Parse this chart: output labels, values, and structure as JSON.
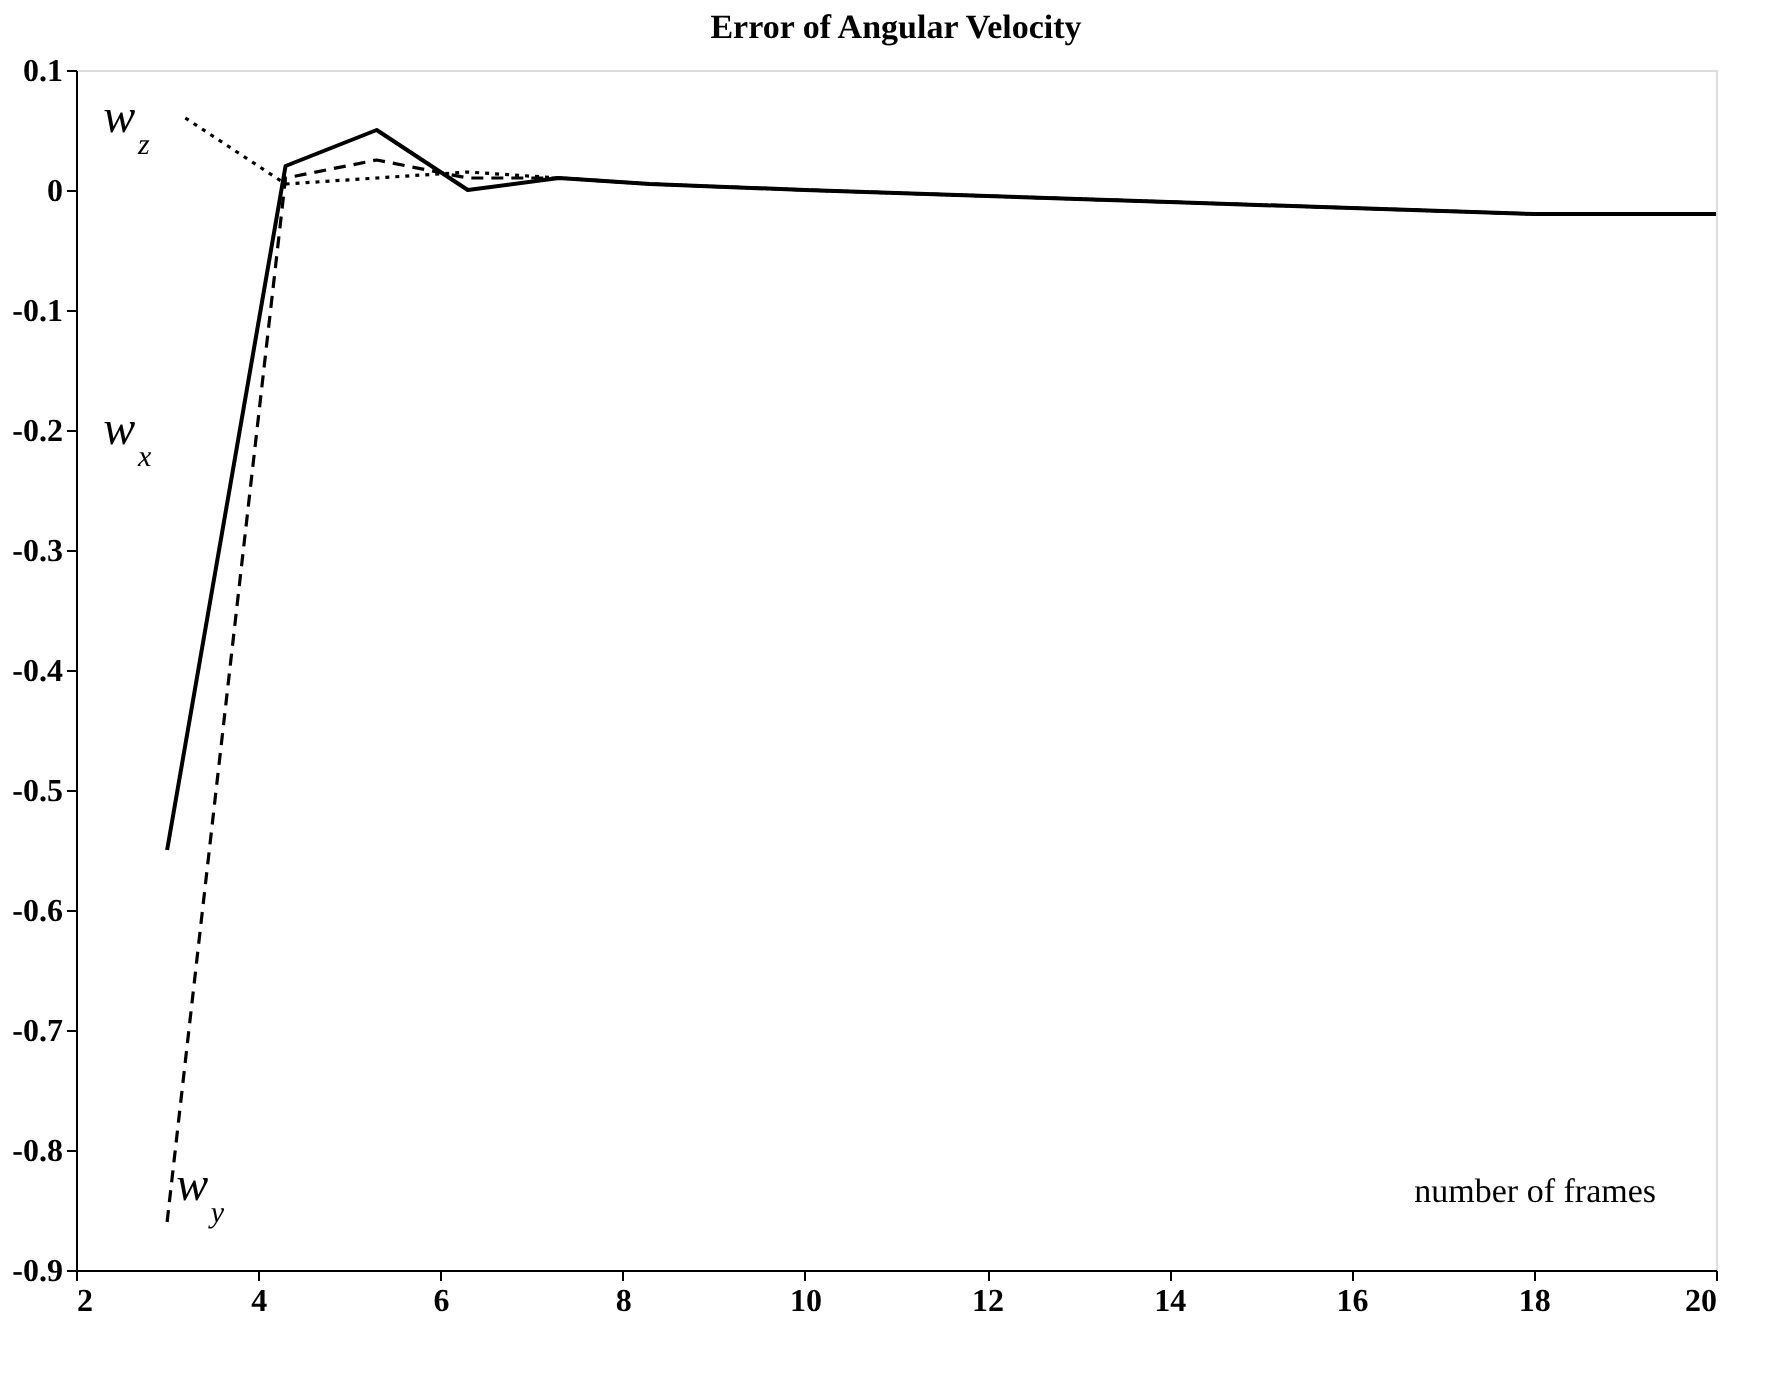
{
  "chart_data": {
    "type": "line",
    "title": "Error of Angular Velocity",
    "annotations": [
      "number of frames"
    ],
    "xlim": [
      2,
      20
    ],
    "xticks": [
      2,
      4,
      6,
      8,
      10,
      12,
      14,
      16,
      18,
      20
    ],
    "ylim": [
      -0.9,
      0.1
    ],
    "yticks": [
      -0.9,
      -0.8,
      -0.7,
      -0.6,
      -0.5,
      -0.4,
      -0.3,
      -0.2,
      -0.1,
      0,
      0.1
    ],
    "grid": false,
    "marker": "none",
    "series": [
      {
        "name": "w$_{x}$",
        "color": "#000000",
        "line_style": "solid",
        "x": [
          3,
          4.3,
          5.3,
          6.3,
          7.3,
          8.3,
          10,
          12,
          14,
          16,
          18,
          20
        ],
        "values": [
          -0.55,
          0.02,
          0.05,
          0.0,
          0.01,
          0.005,
          0.0,
          -0.005,
          -0.01,
          -0.015,
          -0.02,
          -0.02
        ]
      },
      {
        "name": "w$_{y}$",
        "color": "#000000",
        "line_style": "dashed",
        "x": [
          3,
          4.3,
          5.3,
          6.3,
          7.3,
          8.3,
          10,
          12,
          14,
          16,
          18,
          20
        ],
        "values": [
          -0.86,
          0.01,
          0.025,
          0.01,
          0.01,
          0.005,
          0.0,
          -0.005,
          -0.01,
          -0.015,
          -0.02,
          -0.02
        ]
      },
      {
        "name": "w$_{z}$",
        "color": "#000000",
        "line_style": "dotted",
        "x": [
          3.2,
          4.3,
          5.3,
          6.3,
          7.3,
          8.3,
          10,
          12,
          14,
          16,
          18,
          20
        ],
        "values": [
          0.06,
          0.005,
          0.01,
          0.015,
          0.01,
          0.005,
          0.0,
          -0.005,
          -0.01,
          -0.015,
          -0.02,
          -0.02
        ]
      }
    ]
  }
}
